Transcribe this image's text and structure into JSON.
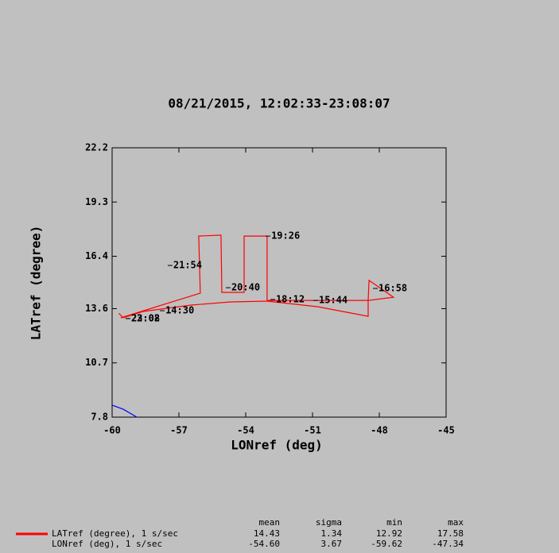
{
  "chart_data": {
    "type": "line",
    "title": "08/21/2015, 12:02:33-23:08:07",
    "x_label": "LONref (deg)",
    "y_label": "LATref (degree)",
    "xlim": [
      -60,
      -45
    ],
    "xticks": [
      -60,
      -57,
      -54,
      -51,
      -48,
      -45
    ],
    "ylim": [
      7.8,
      22.2
    ],
    "yticks": [
      7.8,
      10.7,
      13.6,
      16.4,
      19.3,
      22.2
    ],
    "series": [
      {
        "color": "#ff0000",
        "x": [
          -59.61,
          -56.04,
          -56.11,
          -55.11,
          -55.07,
          -54.07,
          -54.07,
          -53.04,
          -53.04,
          -48.5,
          -48.46,
          -47.36,
          -48.5,
          -48.5,
          -50.75,
          -53.04,
          -54.68,
          -56.46,
          -58.61,
          -59.5,
          -59.7
        ],
        "y": [
          13.11,
          14.43,
          17.48,
          17.53,
          14.47,
          14.47,
          17.48,
          17.48,
          14.04,
          14.04,
          15.11,
          14.21,
          14.04,
          13.19,
          13.7,
          14.0,
          13.96,
          13.79,
          13.45,
          13.11,
          13.35
        ]
      },
      {
        "color": "#0000ff",
        "x": [
          -60,
          -59.5,
          -58.89
        ],
        "y": [
          8.44,
          8.22,
          7.8
        ]
      }
    ],
    "annotations": [
      {
        "text": "23:08",
        "x": -59.18,
        "y": 13.07
      },
      {
        "text": "22:02",
        "x": -59.18,
        "y": 13.07
      },
      {
        "text": "14:30",
        "x": -57.64,
        "y": 13.49
      },
      {
        "text": "21:54",
        "x": -57.29,
        "y": 15.91
      },
      {
        "text": "20:40",
        "x": -54.68,
        "y": 14.72
      },
      {
        "text": "19:26",
        "x": -52.89,
        "y": 17.48
      },
      {
        "text": "18:12",
        "x": -52.68,
        "y": 14.09
      },
      {
        "text": "15:44",
        "x": -50.75,
        "y": 14.04
      },
      {
        "text": "16:58",
        "x": -48.07,
        "y": 14.68
      }
    ]
  },
  "stats": {
    "headers": [
      "mean",
      "sigma",
      "min",
      "max"
    ],
    "rows": [
      {
        "label": "LATref (degree), 1 s/sec",
        "color": "#ff0000",
        "values": [
          "14.43",
          "1.34",
          "12.92",
          "17.58"
        ]
      },
      {
        "label": "LONref (deg), 1 s/sec",
        "values": [
          "-54.60",
          "3.67",
          "-59.62",
          "-47.34"
        ]
      }
    ]
  }
}
